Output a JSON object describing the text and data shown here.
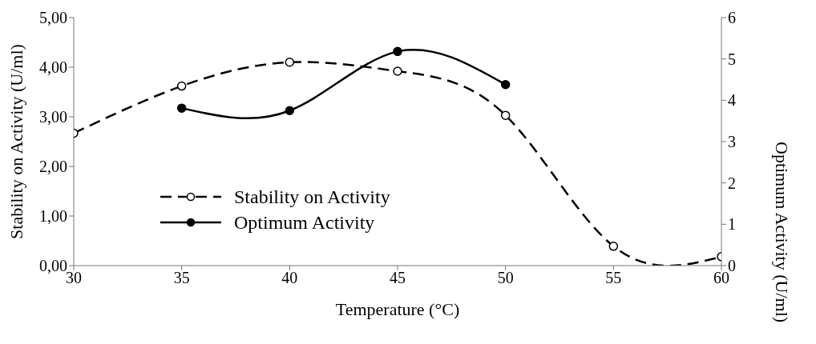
{
  "chart_data": {
    "type": "line",
    "xlabel": "Temperature (°C)",
    "ylabel": "Stability on Activity (U/ml)",
    "y2label": "Optimum Activity (U/ml)",
    "x": [
      30,
      35,
      40,
      45,
      50,
      55,
      60
    ],
    "series": [
      {
        "name": "Stability on Activity",
        "color": "#000000",
        "line_style": "dashed",
        "values": [
          2.67,
          3.62,
          4.1,
          3.92,
          3.03,
          0.39,
          0.18
        ]
      },
      {
        "name": "Optimum Activity",
        "color": "#000000",
        "line_style": "solid",
        "axis": "y2",
        "values": [
          null,
          3.81,
          3.75,
          5.18,
          4.38,
          null,
          null
        ]
      }
    ],
    "xlim": [
      30,
      60
    ],
    "xticks": [
      30,
      35,
      40,
      45,
      50,
      55,
      60
    ],
    "ylim": [
      0,
      5
    ],
    "yticks": [
      {
        "value": 0,
        "label": "0,00"
      },
      {
        "value": 1,
        "label": "1,00"
      },
      {
        "value": 2,
        "label": "2,00"
      },
      {
        "value": 3,
        "label": "3,00"
      },
      {
        "value": 4,
        "label": "4,00"
      },
      {
        "value": 5,
        "label": "5,00"
      }
    ],
    "y2lim": [
      0,
      6
    ],
    "y2ticks": [
      0,
      1,
      2,
      3,
      4,
      5,
      6
    ],
    "marker": "circle",
    "legend": "left",
    "grid": false
  }
}
